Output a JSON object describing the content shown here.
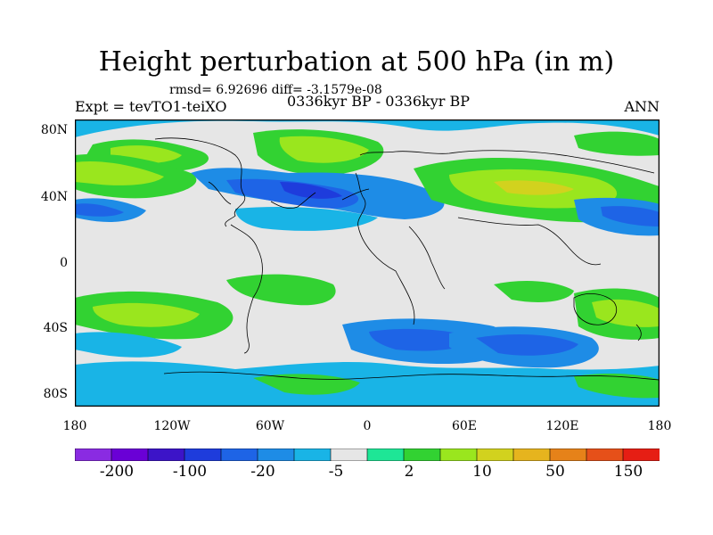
{
  "title": "Height perturbation at 500 hPa (in m)",
  "stats": "rmsd= 6.92696 diff= -3.1579e-08",
  "expt": "Expt = tevTO1-teiXO",
  "period": "0336kyr BP - 0336kyr BP",
  "season": "ANN",
  "y_ticks": [
    "80N",
    "40N",
    "0",
    "40S",
    "80S"
  ],
  "x_ticks": [
    "180",
    "120W",
    "60W",
    "0",
    "60E",
    "120E",
    "180"
  ],
  "colorbar": {
    "colors": [
      "#8a2be2",
      "#6a00d6",
      "#3c14c8",
      "#1e3cdc",
      "#1e64e6",
      "#1e8ce6",
      "#19b4e6",
      "#e6e6e6",
      "#1ee696",
      "#32d232",
      "#9ae61e",
      "#d2d21e",
      "#e6b41e",
      "#e68219",
      "#e65019",
      "#e61e14"
    ],
    "labels": [
      "-200",
      "-100",
      "-20",
      "-5",
      "2",
      "10",
      "50",
      "150"
    ]
  },
  "legend_values": [
    -200,
    -100,
    -20,
    -5,
    2,
    10,
    50,
    150
  ]
}
